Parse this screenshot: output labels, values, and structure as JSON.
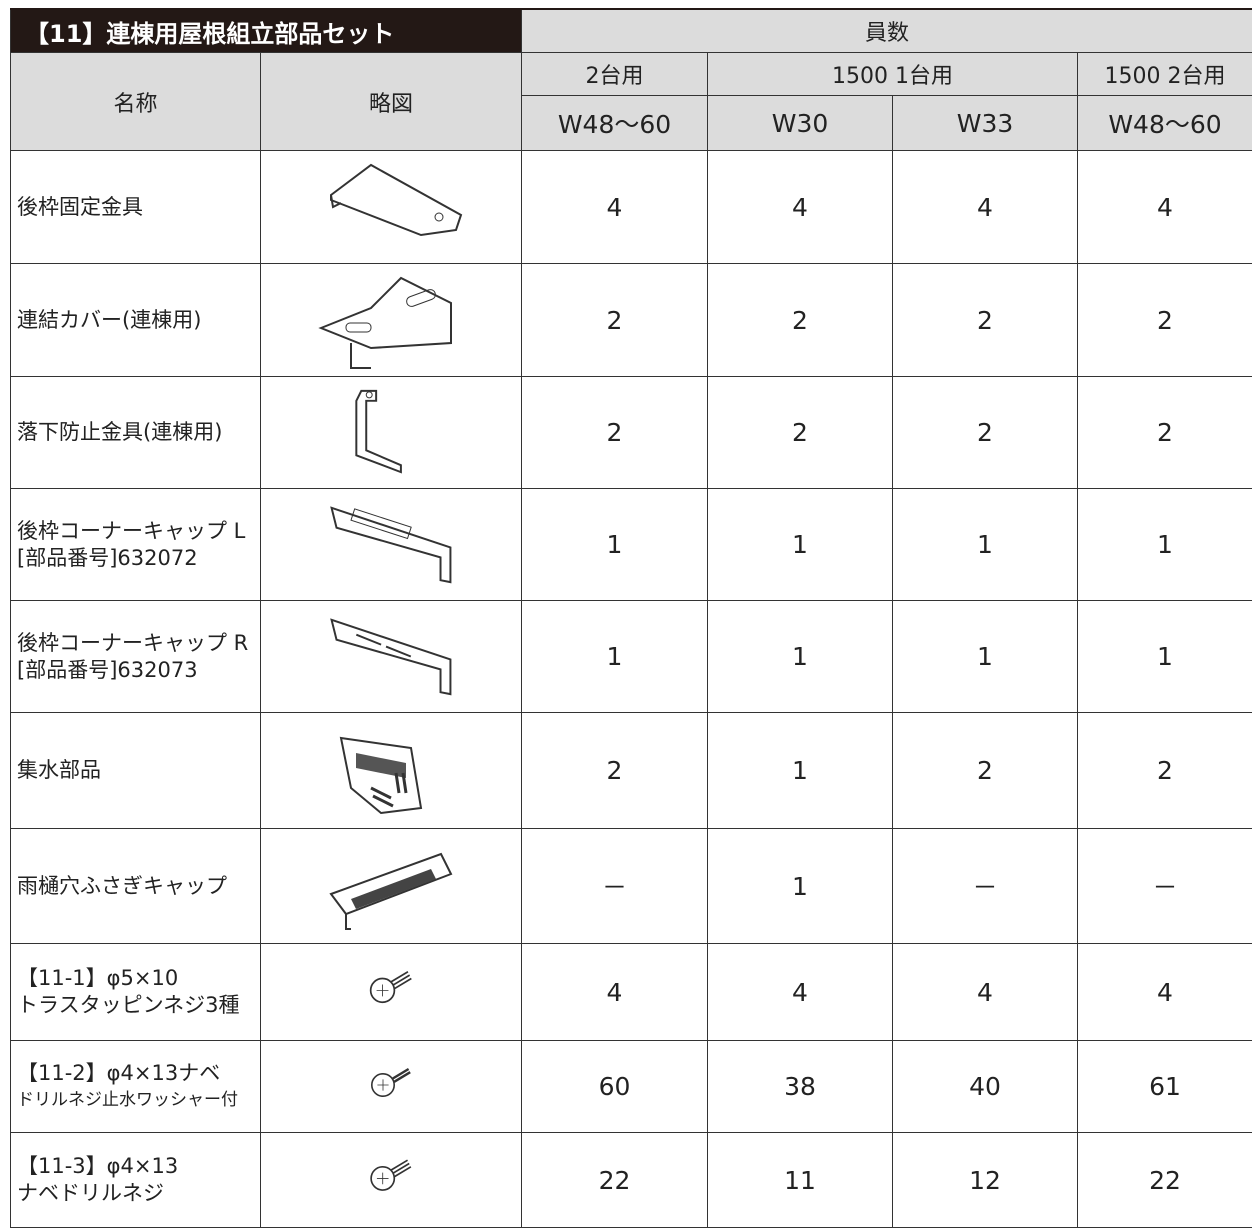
{
  "header": {
    "title": "【11】連棟用屋根組立部品セット",
    "quantity": "員数",
    "name": "名称",
    "diagram": "略図",
    "groups": [
      "2台用",
      "1500 1台用",
      "1500 2台用"
    ],
    "sizes": [
      "W48～60",
      "W30",
      "W33",
      "W48～60"
    ]
  },
  "table": {
    "rows": [
      {
        "name": [
          "後枠固定金具"
        ],
        "counts": [
          4,
          4,
          4,
          4
        ]
      },
      {
        "name": [
          "連結カバー(連棟用)"
        ],
        "counts": [
          2,
          2,
          2,
          2
        ]
      },
      {
        "name": [
          "落下防止金具(連棟用)"
        ],
        "counts": [
          2,
          2,
          2,
          2
        ]
      },
      {
        "name": [
          "後枠コーナーキャップ L",
          "[部品番号]632072"
        ],
        "counts": [
          1,
          1,
          1,
          1
        ]
      },
      {
        "name": [
          "後枠コーナーキャップ R",
          "[部品番号]632073"
        ],
        "counts": [
          1,
          1,
          1,
          1
        ]
      },
      {
        "name": [
          "集水部品"
        ],
        "counts": [
          2,
          1,
          2,
          2
        ]
      },
      {
        "name": [
          "雨樋穴ふさぎキャップ"
        ],
        "counts": [
          "－",
          1,
          "－",
          "－"
        ]
      },
      {
        "name": [
          "【11-1】φ5×10",
          "トラスタッピンネジ3種"
        ],
        "counts": [
          4,
          4,
          4,
          4
        ]
      },
      {
        "name": [
          "【11-2】φ4×13ナベ",
          "ドリルネジ止水ワッシャー付"
        ],
        "counts": [
          60,
          38,
          40,
          61
        ]
      },
      {
        "name": [
          "【11-3】φ4×13",
          "ナベドリルネジ"
        ],
        "counts": [
          22,
          11,
          12,
          22
        ]
      }
    ]
  }
}
